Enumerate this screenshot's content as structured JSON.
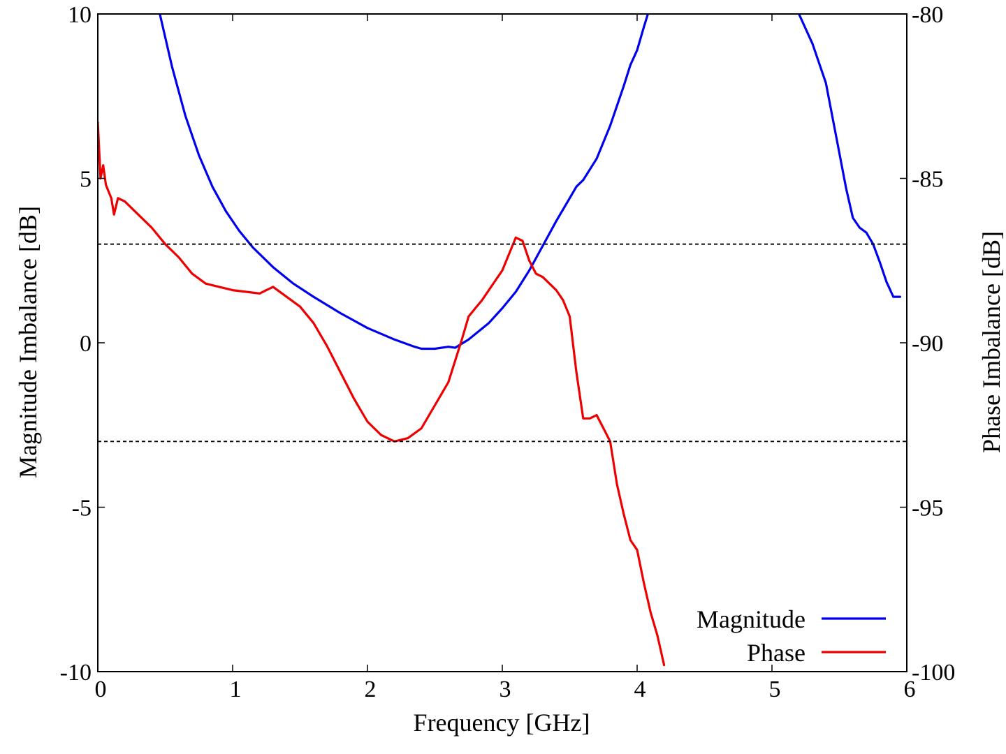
{
  "chart_data": {
    "type": "line",
    "xlabel": "Frequency [GHz]",
    "ylabel": "Magnitude Imbalance [dB]",
    "y2label": "Phase Imbalance [dB]",
    "xlim": [
      0,
      6
    ],
    "ylim": [
      -10,
      10
    ],
    "y2lim": [
      -100,
      -80
    ],
    "xticks": [
      "0",
      "1",
      "2",
      "3",
      "4",
      "5",
      "6"
    ],
    "yticks": [
      "-10",
      "-5",
      "0",
      "5",
      "10"
    ],
    "y2ticks": [
      "-100",
      "-95",
      "-90",
      "-85",
      "-80"
    ],
    "grid": false,
    "legend_position": "bottom-right",
    "reference_lines": [
      {
        "axis": "y",
        "value": 3,
        "style": "dashed"
      },
      {
        "axis": "y",
        "value": -3,
        "style": "dashed"
      }
    ],
    "series": [
      {
        "name": "Magnitude",
        "axis": "left",
        "color": "#0000ee",
        "points": [
          [
            0.46,
            10.0
          ],
          [
            0.55,
            8.4
          ],
          [
            0.65,
            6.9
          ],
          [
            0.75,
            5.7
          ],
          [
            0.85,
            4.75
          ],
          [
            0.95,
            4.0
          ],
          [
            1.05,
            3.4
          ],
          [
            1.15,
            2.9
          ],
          [
            1.3,
            2.3
          ],
          [
            1.45,
            1.8
          ],
          [
            1.6,
            1.4
          ],
          [
            1.8,
            0.9
          ],
          [
            2.0,
            0.45
          ],
          [
            2.2,
            0.1
          ],
          [
            2.35,
            -0.12
          ],
          [
            2.4,
            -0.18
          ],
          [
            2.5,
            -0.18
          ],
          [
            2.6,
            -0.12
          ],
          [
            2.65,
            -0.15
          ],
          [
            2.75,
            0.1
          ],
          [
            2.9,
            0.6
          ],
          [
            3.0,
            1.05
          ],
          [
            3.1,
            1.55
          ],
          [
            3.2,
            2.2
          ],
          [
            3.3,
            2.95
          ],
          [
            3.4,
            3.7
          ],
          [
            3.5,
            4.4
          ],
          [
            3.55,
            4.75
          ],
          [
            3.6,
            4.95
          ],
          [
            3.7,
            5.6
          ],
          [
            3.8,
            6.6
          ],
          [
            3.9,
            7.8
          ],
          [
            3.95,
            8.45
          ],
          [
            4.0,
            8.9
          ],
          [
            4.05,
            9.6
          ],
          [
            4.08,
            10.0
          ]
        ]
      },
      {
        "name": "",
        "axis": "left",
        "color": "#0000ee",
        "points": [
          [
            5.2,
            10.0
          ],
          [
            5.3,
            9.1
          ],
          [
            5.4,
            7.9
          ],
          [
            5.48,
            6.2
          ],
          [
            5.55,
            4.7
          ],
          [
            5.6,
            3.8
          ],
          [
            5.65,
            3.5
          ],
          [
            5.7,
            3.35
          ],
          [
            5.75,
            3.0
          ],
          [
            5.8,
            2.45
          ],
          [
            5.85,
            1.85
          ],
          [
            5.9,
            1.4
          ],
          [
            5.95,
            1.4
          ]
        ]
      },
      {
        "name": "Phase",
        "axis": "right",
        "color": "#ee0000",
        "points": [
          [
            0.0,
            -83.3
          ],
          [
            0.02,
            -85.0
          ],
          [
            0.04,
            -84.6
          ],
          [
            0.06,
            -85.2
          ],
          [
            0.1,
            -85.6
          ],
          [
            0.12,
            -86.1
          ],
          [
            0.15,
            -85.6
          ],
          [
            0.2,
            -85.7
          ],
          [
            0.3,
            -86.1
          ],
          [
            0.4,
            -86.5
          ],
          [
            0.5,
            -87.0
          ],
          [
            0.6,
            -87.4
          ],
          [
            0.7,
            -87.9
          ],
          [
            0.8,
            -88.2
          ],
          [
            0.9,
            -88.3
          ],
          [
            1.0,
            -88.4
          ],
          [
            1.1,
            -88.45
          ],
          [
            1.2,
            -88.5
          ],
          [
            1.25,
            -88.4
          ],
          [
            1.3,
            -88.3
          ],
          [
            1.4,
            -88.6
          ],
          [
            1.5,
            -88.9
          ],
          [
            1.6,
            -89.4
          ],
          [
            1.7,
            -90.1
          ],
          [
            1.8,
            -90.9
          ],
          [
            1.9,
            -91.7
          ],
          [
            2.0,
            -92.4
          ],
          [
            2.1,
            -92.8
          ],
          [
            2.2,
            -93.0
          ],
          [
            2.3,
            -92.9
          ],
          [
            2.4,
            -92.6
          ],
          [
            2.5,
            -91.9
          ],
          [
            2.6,
            -91.2
          ],
          [
            2.7,
            -89.9
          ],
          [
            2.75,
            -89.2
          ],
          [
            2.8,
            -88.95
          ],
          [
            2.85,
            -88.7
          ],
          [
            2.9,
            -88.4
          ],
          [
            3.0,
            -87.8
          ],
          [
            3.1,
            -86.8
          ],
          [
            3.15,
            -86.9
          ],
          [
            3.2,
            -87.5
          ],
          [
            3.25,
            -87.9
          ],
          [
            3.3,
            -88.0
          ],
          [
            3.4,
            -88.4
          ],
          [
            3.45,
            -88.7
          ],
          [
            3.5,
            -89.2
          ],
          [
            3.55,
            -90.9
          ],
          [
            3.6,
            -92.3
          ],
          [
            3.65,
            -92.3
          ],
          [
            3.7,
            -92.2
          ],
          [
            3.75,
            -92.6
          ],
          [
            3.8,
            -93.0
          ],
          [
            3.85,
            -94.3
          ],
          [
            3.9,
            -95.2
          ],
          [
            3.95,
            -96.0
          ],
          [
            4.0,
            -96.3
          ],
          [
            4.05,
            -97.3
          ],
          [
            4.1,
            -98.2
          ],
          [
            4.15,
            -98.9
          ],
          [
            4.2,
            -99.8
          ]
        ]
      }
    ]
  }
}
